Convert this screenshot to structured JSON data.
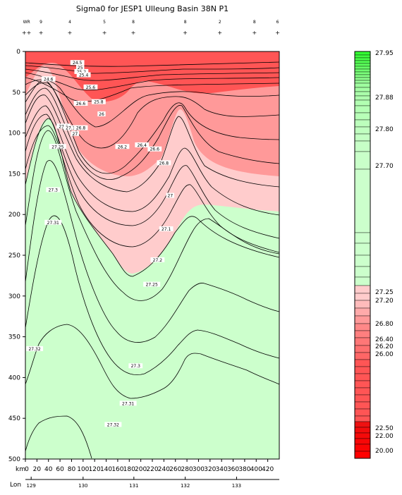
{
  "chart_data": {
    "type": "area",
    "title": "Sigma0 for JESP1 Ulleung Basin 38N P1",
    "station_ids": [
      "WR",
      "9",
      "4",
      "5",
      "8",
      "8",
      "2",
      "8",
      "6"
    ],
    "station_km": [
      2,
      27,
      77,
      137,
      187,
      277,
      337,
      397,
      437
    ],
    "y_ticks": [
      0,
      50,
      100,
      150,
      200,
      250,
      300,
      350,
      400,
      450,
      500
    ],
    "ylim": [
      0,
      500
    ],
    "x_unit_label": "km",
    "x_ticks": [
      0,
      20,
      40,
      60,
      80,
      100,
      120,
      140,
      160,
      180,
      200,
      220,
      240,
      260,
      280,
      300,
      320,
      340,
      360,
      380,
      400,
      420
    ],
    "xlim": [
      0,
      440
    ],
    "lon_label": "Lon",
    "lon_ticks": [
      {
        "km": 10,
        "label": "129"
      },
      {
        "km": 100,
        "label": "130"
      },
      {
        "km": 188,
        "label": "131"
      },
      {
        "km": 277,
        "label": "132"
      },
      {
        "km": 366,
        "label": "133"
      }
    ],
    "contour_levels": [
      26.0,
      26.2,
      26.4,
      26.6,
      26.8,
      27.0,
      27.1,
      27.2,
      27.25,
      27.3,
      27.31,
      27.32
    ],
    "colorbar": {
      "tick_labels": [
        "27.95",
        "27.88",
        "27.80",
        "27.70",
        "27.25",
        "27.20",
        "26.80",
        "26.40",
        "26.20",
        "26.00",
        "22.50",
        "22.00",
        "20.00"
      ],
      "colors": {
        "green": "#33ff33",
        "light_green": "#ccffcc",
        "light_pink": "#ffcccc",
        "pink": "#ff9999",
        "red": "#ff5555",
        "deep_red": "#ff0000"
      }
    },
    "contour_labels": [
      {
        "text": "24.5",
        "km": 90,
        "depth": 14
      },
      {
        "text": "25",
        "km": 95,
        "depth": 20
      },
      {
        "text": "25.2",
        "km": 97,
        "depth": 25
      },
      {
        "text": "25.4",
        "km": 101,
        "depth": 29
      },
      {
        "text": "24.6",
        "km": 40,
        "depth": 34
      },
      {
        "text": "25.6",
        "km": 113,
        "depth": 44
      },
      {
        "text": "25.8",
        "km": 127,
        "depth": 62
      },
      {
        "text": "26.6",
        "km": 96,
        "depth": 64
      },
      {
        "text": "26",
        "km": 132,
        "depth": 77
      },
      {
        "text": "27.2",
        "km": 66,
        "depth": 92
      },
      {
        "text": "27.1",
        "km": 78,
        "depth": 94
      },
      {
        "text": "26.8",
        "km": 96,
        "depth": 94
      },
      {
        "text": "27",
        "km": 86,
        "depth": 101
      },
      {
        "text": "27.25",
        "km": 56,
        "depth": 117
      },
      {
        "text": "26.2",
        "km": 168,
        "depth": 117
      },
      {
        "text": "26.4",
        "km": 202,
        "depth": 115
      },
      {
        "text": "26.6",
        "km": 224,
        "depth": 120
      },
      {
        "text": "26.8",
        "km": 240,
        "depth": 137
      },
      {
        "text": "27.3",
        "km": 48,
        "depth": 170
      },
      {
        "text": "27",
        "km": 251,
        "depth": 177
      },
      {
        "text": "27.31",
        "km": 48,
        "depth": 210
      },
      {
        "text": "27.1",
        "km": 244,
        "depth": 218
      },
      {
        "text": "27.2",
        "km": 229,
        "depth": 256
      },
      {
        "text": "27.25",
        "km": 219,
        "depth": 286
      },
      {
        "text": "27.32",
        "km": 16,
        "depth": 365
      },
      {
        "text": "27.3",
        "km": 191,
        "depth": 386
      },
      {
        "text": "27.31",
        "km": 178,
        "depth": 432
      },
      {
        "text": "27.32",
        "km": 152,
        "depth": 458
      }
    ]
  }
}
